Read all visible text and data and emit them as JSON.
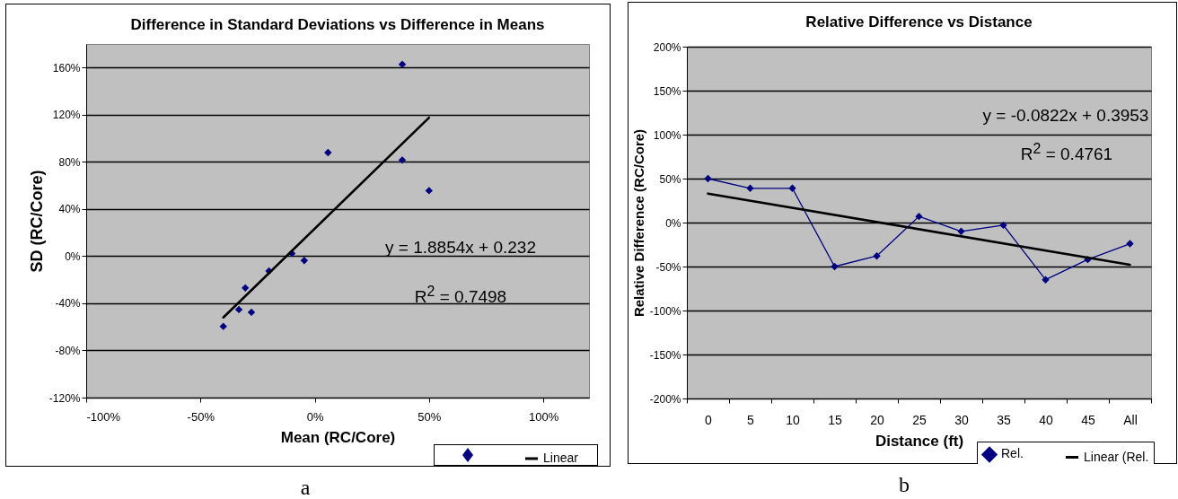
{
  "chart_data": [
    {
      "type": "scatter",
      "title": "Difference in Standard Deviations vs Difference in Means",
      "xlabel": "Mean (RC/Core)",
      "ylabel": "SD (RC/Core)",
      "xlim": [
        -100,
        120
      ],
      "xticks": [
        {
          "value": -100,
          "label": "-100%"
        },
        {
          "value": -50,
          "label": "-50%"
        },
        {
          "value": 0,
          "label": "0%"
        },
        {
          "value": 50,
          "label": "50%"
        },
        {
          "value": 100,
          "label": "100%"
        }
      ],
      "ylim": [
        -120,
        180
      ],
      "yticks": [
        {
          "value": -120,
          "label": "-120%"
        },
        {
          "value": -80,
          "label": "-80%"
        },
        {
          "value": -40,
          "label": "-40%"
        },
        {
          "value": 0,
          "label": "0%"
        },
        {
          "value": 40,
          "label": "40%"
        },
        {
          "value": 80,
          "label": "80%"
        },
        {
          "value": 120,
          "label": "120%"
        },
        {
          "value": 160,
          "label": "160%"
        }
      ],
      "grid": "y",
      "legend": "bottom right",
      "marker": "diamond",
      "series": [
        {
          "color": "#000080",
          "x": [
            -40,
            -33.2,
            -30.4,
            -27.7,
            -20,
            -10,
            -4.6,
            5.8,
            38.3,
            38.3,
            50
          ],
          "values": [
            -59.6,
            -45.3,
            -27,
            -47.6,
            -12.6,
            2.3,
            -3.7,
            87.9,
            162.7,
            81.5,
            55.6
          ]
        },
        {
          "name": "Linear",
          "type": "line",
          "marker": "none",
          "color": "#000000",
          "x": [
            -40,
            50
          ],
          "values": [
            -52,
            117.5
          ]
        }
      ],
      "annotations": [
        "y = 1.8854x + 0.232",
        "R$^{2}$ = 0.7498",
        "a"
      ]
    },
    {
      "type": "line",
      "title": "Relative Difference vs Distance",
      "xlabel": "Distance (ft)",
      "ylabel": "Relative Difference (RC/Core)",
      "categories": [
        "0",
        "5",
        "10",
        "15",
        "20",
        "25",
        "30",
        "35",
        "40",
        "45",
        "All"
      ],
      "ylim": [
        -200,
        200
      ],
      "yticks": [
        {
          "value": -200,
          "label": "-200%"
        },
        {
          "value": -150,
          "label": "-150%"
        },
        {
          "value": -100,
          "label": "-100%"
        },
        {
          "value": -50,
          "label": "-50%"
        },
        {
          "value": 0,
          "label": "0%"
        },
        {
          "value": 50,
          "label": "50%"
        },
        {
          "value": 100,
          "label": "100%"
        },
        {
          "value": 150,
          "label": "150%"
        },
        {
          "value": 200,
          "label": "200%"
        }
      ],
      "grid": "y",
      "legend": "bottom right",
      "marker": "diamond",
      "series": [
        {
          "name": "Rel.",
          "color": "#000080",
          "values": [
            50,
            39,
            39,
            -50,
            -38,
            7,
            -10,
            -3,
            -65,
            -42,
            -24
          ]
        },
        {
          "name": "Linear (Rel.",
          "marker": "none",
          "color": "#000000",
          "x": [
            "0",
            "All"
          ],
          "values": [
            33,
            -48
          ]
        }
      ],
      "annotations": [
        "y = -0.0822x + 0.3953",
        "R$^{2}$ = 0.4761",
        "b"
      ]
    }
  ]
}
